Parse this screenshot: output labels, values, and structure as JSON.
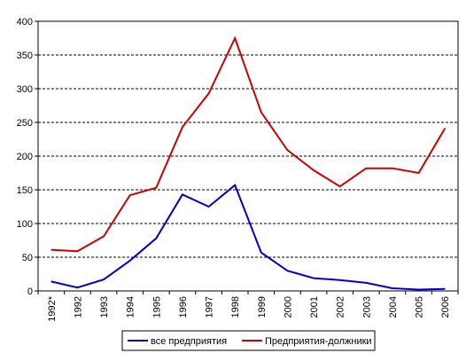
{
  "chart_data": {
    "type": "line",
    "title": "",
    "xlabel": "",
    "ylabel": "",
    "categories": [
      "1992*",
      "1992",
      "1993",
      "1994",
      "1995",
      "1996",
      "1997",
      "1998",
      "1999",
      "2000",
      "2001",
      "2002",
      "2003",
      "2004",
      "2005",
      "2006"
    ],
    "ylim": [
      0,
      400
    ],
    "yticks": [
      0,
      50,
      100,
      150,
      200,
      250,
      300,
      350,
      400
    ],
    "grid": "horizontal-dashed",
    "legend_position": "bottom",
    "series": [
      {
        "name": "все предприятия",
        "color": "#0000cc",
        "values": [
          14,
          5,
          17,
          45,
          78,
          143,
          125,
          157,
          57,
          30,
          19,
          16,
          12,
          4,
          2,
          3
        ]
      },
      {
        "name": "Предприятия-должники",
        "color": "#cc0000",
        "values": [
          61,
          59,
          81,
          142,
          153,
          243,
          293,
          375,
          265,
          209,
          179,
          155,
          182,
          182,
          175,
          241
        ]
      }
    ]
  }
}
